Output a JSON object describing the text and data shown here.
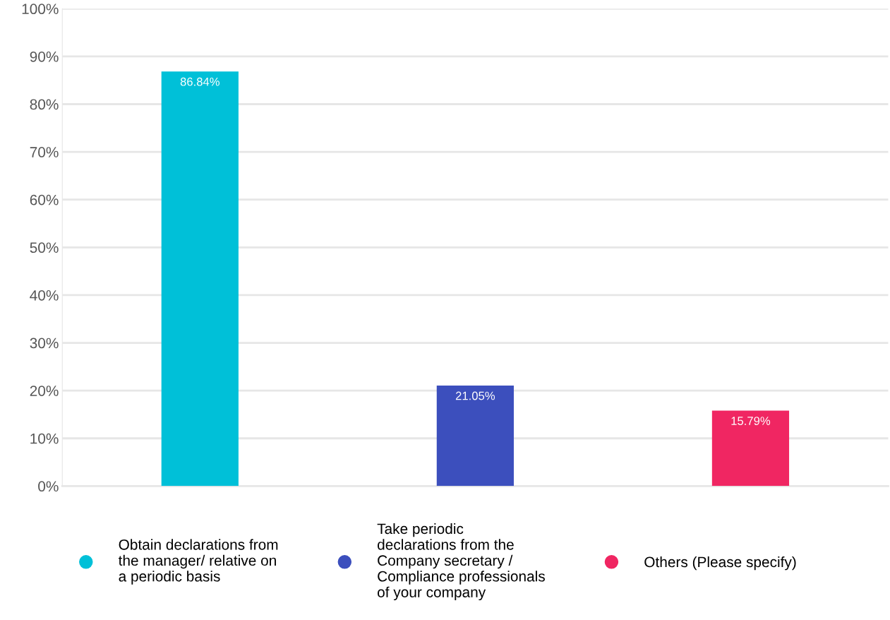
{
  "chart_data": {
    "type": "bar",
    "categories": [
      null,
      null,
      null
    ],
    "series": [
      {
        "name": "Obtain declarations from\nthe manager/ relative on\na periodic basis",
        "color": "#00c0d8",
        "values": [
          86.84,
          null,
          null
        ],
        "value_labels": [
          "86.84%",
          null,
          null
        ]
      },
      {
        "name": "Take periodic\ndeclarations from the\nCompany secretary /\nCompliance professionals\nof your company",
        "color": "#3c4fbd",
        "values": [
          null,
          21.05,
          null
        ],
        "value_labels": [
          null,
          "21.05%",
          null
        ]
      },
      {
        "name": "Others (Please specify)",
        "color": "#f02662",
        "values": [
          null,
          null,
          15.79
        ],
        "value_labels": [
          null,
          null,
          "15.79%"
        ]
      }
    ],
    "ylim": [
      0,
      100
    ],
    "yticks": [
      {
        "value": 0,
        "label": "0%"
      },
      {
        "value": 10,
        "label": "10%"
      },
      {
        "value": 20,
        "label": "20%"
      },
      {
        "value": 30,
        "label": "30%"
      },
      {
        "value": 40,
        "label": "40%"
      },
      {
        "value": 50,
        "label": "50%"
      },
      {
        "value": 60,
        "label": "60%"
      },
      {
        "value": 70,
        "label": "70%"
      },
      {
        "value": 80,
        "label": "80%"
      },
      {
        "value": 90,
        "label": "90%"
      },
      {
        "value": 100,
        "label": "100%"
      }
    ],
    "grid": "y",
    "legend": "bottom",
    "tick_labels": "y"
  }
}
